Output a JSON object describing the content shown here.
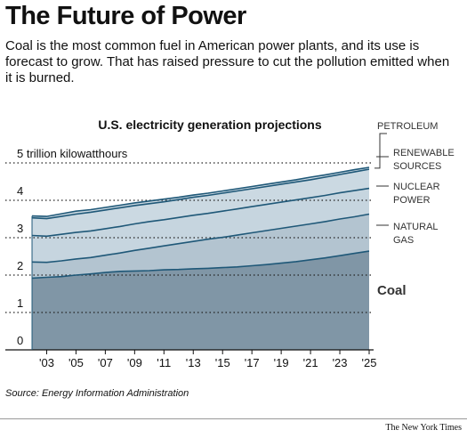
{
  "headline": "The Future of Power",
  "dek": "Coal is the most common fuel in American power plants, and its use is forecast to grow. That has raised pressure to cut the pollution emitted when it is burned.",
  "source": "Source: Energy Information Administration",
  "credit": "The New York Times",
  "chart_data": {
    "type": "area",
    "title": "U.S. electricity generation projections",
    "ylabel": "5 trillion kilowatthours",
    "ylim": [
      0,
      5.5
    ],
    "xlim": [
      2002,
      2025
    ],
    "yticks": [
      "0",
      "1",
      "2",
      "3",
      "4",
      "5 trillion kilowatthours"
    ],
    "xticks": [
      "'03",
      "'05",
      "'07",
      "'09",
      "'11",
      "'13",
      "'15",
      "'17",
      "'19",
      "'21",
      "'23",
      "'25"
    ],
    "xtick_years": [
      2003,
      2005,
      2007,
      2009,
      2011,
      2013,
      2015,
      2017,
      2019,
      2021,
      2023,
      2025
    ],
    "x": [
      2002,
      2003,
      2004,
      2005,
      2006,
      2007,
      2008,
      2009,
      2010,
      2011,
      2012,
      2013,
      2014,
      2015,
      2016,
      2017,
      2018,
      2019,
      2020,
      2021,
      2022,
      2023,
      2024,
      2025
    ],
    "stacking": "cumulative",
    "series": [
      {
        "name": "Coal",
        "color": "#8096a6",
        "values": [
          1.92,
          1.94,
          1.96,
          2.0,
          2.03,
          2.07,
          2.1,
          2.11,
          2.12,
          2.14,
          2.15,
          2.17,
          2.18,
          2.2,
          2.22,
          2.25,
          2.28,
          2.32,
          2.36,
          2.41,
          2.46,
          2.52,
          2.58,
          2.64
        ]
      },
      {
        "name": "NATURAL GAS",
        "color": "#b3c4d0",
        "values": [
          2.35,
          2.34,
          2.38,
          2.43,
          2.47,
          2.53,
          2.59,
          2.66,
          2.72,
          2.78,
          2.84,
          2.9,
          2.96,
          3.01,
          3.07,
          3.13,
          3.19,
          3.25,
          3.31,
          3.37,
          3.43,
          3.5,
          3.56,
          3.63
        ]
      },
      {
        "name": "NUCLEAR POWER",
        "color": "#c6d5df",
        "values": [
          3.06,
          3.04,
          3.09,
          3.14,
          3.18,
          3.24,
          3.3,
          3.37,
          3.43,
          3.48,
          3.54,
          3.6,
          3.65,
          3.71,
          3.77,
          3.83,
          3.89,
          3.95,
          4.01,
          4.07,
          4.13,
          4.2,
          4.26,
          4.32
        ]
      },
      {
        "name": "RENEWABLE SOURCES",
        "color": "#cbd9e2",
        "values": [
          3.53,
          3.51,
          3.57,
          3.63,
          3.68,
          3.74,
          3.8,
          3.86,
          3.91,
          3.96,
          4.02,
          4.08,
          4.13,
          4.19,
          4.25,
          4.31,
          4.37,
          4.43,
          4.49,
          4.55,
          4.62,
          4.69,
          4.76,
          4.83
        ]
      },
      {
        "name": "PETROLEUM",
        "color": "#cbd9e2",
        "values": [
          3.58,
          3.57,
          3.64,
          3.71,
          3.75,
          3.81,
          3.87,
          3.93,
          3.98,
          4.03,
          4.08,
          4.14,
          4.19,
          4.25,
          4.31,
          4.37,
          4.43,
          4.49,
          4.55,
          4.62,
          4.68,
          4.75,
          4.82,
          4.88
        ]
      }
    ],
    "labels": {
      "petroleum": "PETROLEUM",
      "renewable_1": "RENEWABLE",
      "renewable_2": "SOURCES",
      "nuclear_1": "NUCLEAR",
      "nuclear_2": "POWER",
      "gas_1": "NATURAL",
      "gas_2": "GAS",
      "coal": "Coal"
    },
    "line_color": "#1f5878",
    "grid": "dotted"
  }
}
